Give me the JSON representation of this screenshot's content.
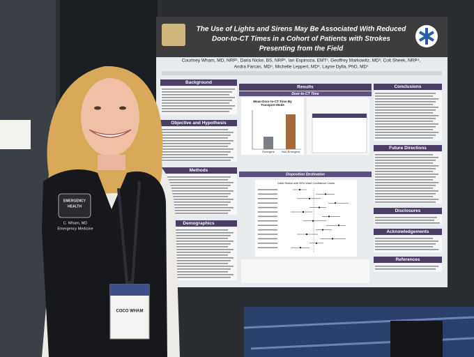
{
  "poster": {
    "title_lines": [
      "The Use of Lights and Sirens May Be Associated With Reduced",
      "Door-to-CT Times in a Cohort of Patients with Strokes",
      "Presenting from the Field"
    ],
    "author_lines": [
      "Courtney Wham, MD, NRP¹, Daria Nicke, BS, NRP¹, Ian Espinoza, EMT², Geoffrey Markowitz, MD³, Colt Sheek, NRP⁴,",
      "Andra Farcas, MD⁵, Michelle Leppert, MD⁶, Layne Dylla, PhD, MD¹"
    ],
    "left_sections": [
      "Background",
      "Objective and Hypothesis",
      "Methods",
      "Demographics"
    ],
    "results": {
      "title": "Results",
      "door_to_ct": "Door-to-CT Time",
      "bar_chart_title": [
        "Mean Door-to-CT Time By",
        "Transport Mode"
      ],
      "bar_categories": [
        "Emergent",
        "Non-Emergent"
      ],
      "disposition": "Disposition Destination",
      "forest_title": "Odds Ratios with 95% Wald Confidence Limits"
    },
    "right_sections": [
      "Conclusions",
      "Future Directions",
      "Disclosures",
      "Acknowledgements",
      "References"
    ]
  },
  "badge": {
    "name": "COCO WHAM"
  },
  "jacket": {
    "logo_lines": [
      "EMERGENCY",
      "HEALTH"
    ],
    "name": "C. Wham, MD",
    "department": "Emergency Medicine"
  }
}
